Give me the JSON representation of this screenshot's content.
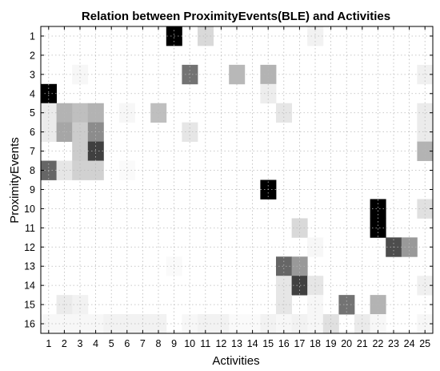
{
  "chart_data": {
    "type": "heatmap",
    "title": "Relation between ProximityEvents(BLE) and Activities",
    "xlabel": "Activities",
    "ylabel": "ProximityEvents",
    "x_ticks": [
      "1",
      "2",
      "3",
      "4",
      "5",
      "6",
      "7",
      "8",
      "9",
      "10",
      "11",
      "12",
      "13",
      "14",
      "15",
      "16",
      "17",
      "18",
      "19",
      "20",
      "21",
      "22",
      "23",
      "24",
      "25"
    ],
    "y_ticks": [
      "1",
      "2",
      "3",
      "4",
      "5",
      "6",
      "7",
      "8",
      "9",
      "10",
      "11",
      "12",
      "13",
      "14",
      "15",
      "16"
    ],
    "xlim": [
      0.5,
      25.5
    ],
    "ylim": [
      0.5,
      16.5
    ],
    "y_axis_reversed": true,
    "grid": true,
    "colormap": "gray_reversed",
    "value_range": [
      0,
      1
    ],
    "matrix": [
      [
        0,
        0,
        0,
        0,
        0,
        0,
        0,
        0,
        1.0,
        0,
        0.15,
        0,
        0,
        0,
        0,
        0,
        0,
        0.05,
        0,
        0,
        0,
        0,
        0,
        0,
        0
      ],
      [
        0,
        0,
        0,
        0,
        0,
        0,
        0,
        0,
        0,
        0,
        0,
        0,
        0,
        0,
        0,
        0,
        0,
        0,
        0,
        0,
        0,
        0,
        0,
        0,
        0
      ],
      [
        0,
        0,
        0.03,
        0,
        0,
        0,
        0,
        0,
        0,
        0.55,
        0,
        0,
        0.28,
        0,
        0.3,
        0,
        0,
        0,
        0,
        0,
        0,
        0,
        0,
        0,
        0.06
      ],
      [
        1.0,
        0,
        0,
        0,
        0,
        0,
        0,
        0,
        0,
        0,
        0,
        0,
        0,
        0,
        0.07,
        0,
        0,
        0,
        0,
        0,
        0,
        0,
        0,
        0,
        0
      ],
      [
        0.08,
        0.3,
        0.25,
        0.3,
        0,
        0.03,
        0,
        0.25,
        0,
        0,
        0,
        0,
        0,
        0,
        0,
        0.1,
        0,
        0,
        0,
        0,
        0,
        0,
        0,
        0,
        0.08
      ],
      [
        0.08,
        0.35,
        0.2,
        0.45,
        0,
        0,
        0,
        0,
        0,
        0.1,
        0,
        0,
        0,
        0,
        0,
        0,
        0,
        0,
        0,
        0,
        0,
        0,
        0,
        0,
        0.08
      ],
      [
        0,
        0,
        0.2,
        0.75,
        0,
        0,
        0,
        0,
        0,
        0,
        0,
        0,
        0,
        0,
        0,
        0,
        0,
        0,
        0,
        0,
        0,
        0,
        0,
        0,
        0.3
      ],
      [
        0.6,
        0.1,
        0.18,
        0.18,
        0,
        0.02,
        0,
        0,
        0,
        0,
        0,
        0,
        0,
        0,
        0,
        0,
        0,
        0,
        0,
        0,
        0,
        0,
        0,
        0,
        0
      ],
      [
        0,
        0,
        0,
        0,
        0,
        0,
        0,
        0,
        0,
        0,
        0,
        0,
        0,
        0,
        1.0,
        0,
        0,
        0,
        0,
        0,
        0,
        0,
        0,
        0,
        0
      ],
      [
        0,
        0,
        0,
        0,
        0,
        0,
        0,
        0,
        0,
        0,
        0,
        0,
        0,
        0,
        0,
        0,
        0,
        0,
        0,
        0,
        0,
        1.0,
        0,
        0,
        0.12
      ],
      [
        0,
        0,
        0,
        0,
        0,
        0,
        0,
        0,
        0,
        0,
        0,
        0,
        0,
        0,
        0,
        0,
        0.15,
        0,
        0,
        0,
        0,
        1.0,
        0,
        0,
        0
      ],
      [
        0,
        0,
        0,
        0,
        0,
        0,
        0,
        0,
        0,
        0,
        0,
        0,
        0,
        0,
        0,
        0,
        0,
        0.03,
        0,
        0,
        0,
        0,
        0.7,
        0.4,
        0
      ],
      [
        0,
        0,
        0,
        0,
        0,
        0,
        0,
        0,
        0.02,
        0,
        0,
        0,
        0,
        0,
        0,
        0.6,
        0.4,
        0,
        0,
        0,
        0,
        0,
        0,
        0,
        0
      ],
      [
        0,
        0,
        0,
        0,
        0,
        0,
        0,
        0,
        0,
        0,
        0,
        0,
        0,
        0,
        0,
        0.1,
        0.75,
        0.1,
        0,
        0,
        0,
        0,
        0,
        0,
        0.06
      ],
      [
        0,
        0.08,
        0.05,
        0,
        0,
        0,
        0,
        0,
        0,
        0,
        0,
        0,
        0,
        0,
        0,
        0.1,
        0,
        0.03,
        0,
        0.55,
        0,
        0.3,
        0,
        0,
        0
      ],
      [
        0.03,
        0.03,
        0.03,
        0.03,
        0.05,
        0.05,
        0.05,
        0.05,
        0,
        0.03,
        0.05,
        0.05,
        0.02,
        0.02,
        0.05,
        0.03,
        0.05,
        0.03,
        0.12,
        0,
        0.08,
        0.03,
        0,
        0,
        0.03
      ]
    ]
  }
}
